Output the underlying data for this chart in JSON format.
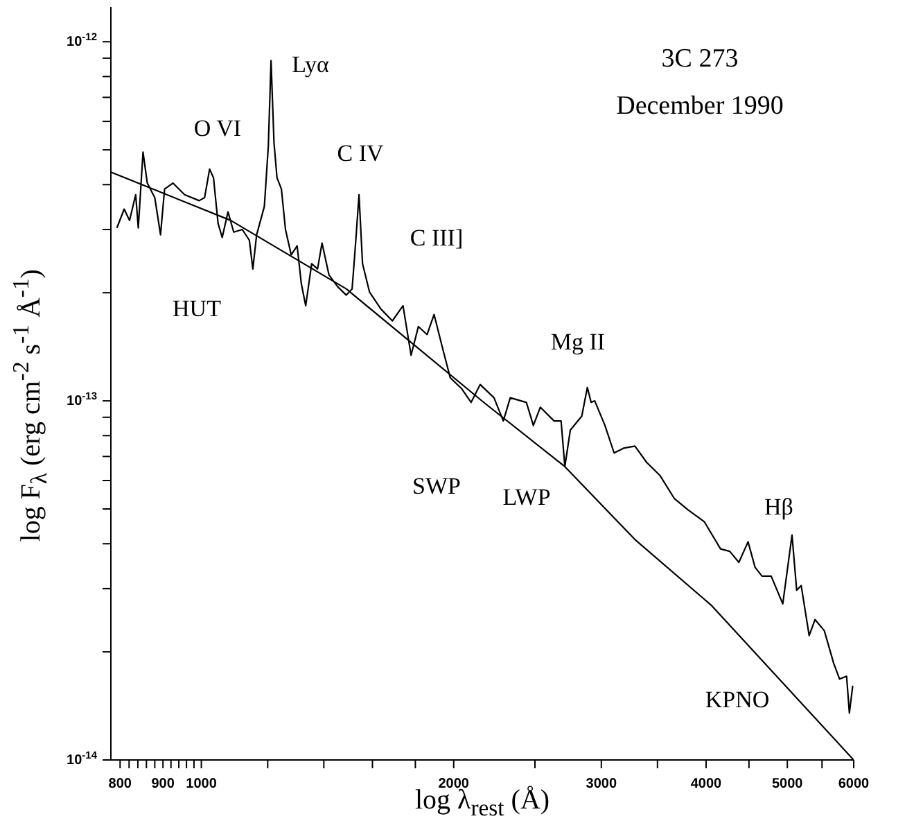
{
  "chart_data": {
    "type": "line",
    "title": "3C 273",
    "subtitle": "December 1990",
    "xlabel": "log λ$_{rest}$ (Å)",
    "ylabel": "log F$_{λ}$ (erg cm$^{-2}$ s$^{-1}$ Å$^{-1}$)",
    "log": "xy",
    "xlim": [
      780,
      6000
    ],
    "ylim": [
      1e-14,
      1.25e-12
    ],
    "xticks": [
      800,
      {
        "value": 820,
        "label": null
      },
      {
        "value": 840,
        "label": null
      },
      {
        "value": 860,
        "label": null
      },
      {
        "value": 880,
        "label": null
      },
      900,
      {
        "value": 920,
        "label": null
      },
      {
        "value": 940,
        "label": null
      },
      {
        "value": 960,
        "label": null
      },
      {
        "value": 980,
        "label": null
      },
      1000,
      {
        "value": 1200,
        "label": null
      },
      {
        "value": 1400,
        "label": null
      },
      {
        "value": 1600,
        "label": null
      },
      {
        "value": 1800,
        "label": null
      },
      2000,
      {
        "value": 2500,
        "label": null
      },
      3000,
      {
        "value": 3500,
        "label": null
      },
      4000,
      {
        "value": 4500,
        "label": null
      },
      5000,
      {
        "value": 5500,
        "label": null
      },
      6000
    ],
    "yticks": [
      {
        "value": 1e-14,
        "label": "10$^{-14}$"
      },
      {
        "value": 2e-14,
        "label": null
      },
      {
        "value": 3e-14,
        "label": null
      },
      {
        "value": 4e-14,
        "label": null
      },
      {
        "value": 5e-14,
        "label": null
      },
      {
        "value": 6e-14,
        "label": null
      },
      {
        "value": 7e-14,
        "label": null
      },
      {
        "value": 8e-14,
        "label": null
      },
      {
        "value": 9e-14,
        "label": null
      },
      {
        "value": 1e-13,
        "label": "10$^{-13}$"
      },
      {
        "value": 2e-13,
        "label": null
      },
      {
        "value": 3e-13,
        "label": null
      },
      {
        "value": 4e-13,
        "label": null
      },
      {
        "value": 5e-13,
        "label": null
      },
      {
        "value": 6e-13,
        "label": null
      },
      {
        "value": 7e-13,
        "label": null
      },
      {
        "value": 8e-13,
        "label": null
      },
      {
        "value": 9e-13,
        "label": null
      },
      {
        "value": 1e-12,
        "label": "10$^{-12}$"
      }
    ],
    "grid": false,
    "legend": false,
    "marker": "none",
    "line_style": "solid",
    "series": [
      {
        "color": "#000000",
        "x": [
          793,
          809,
          821,
          835,
          841,
          852,
          862,
          880,
          894,
          904,
          925,
          955,
          994,
          1009,
          1023,
          1034,
          1047,
          1059,
          1076,
          1093,
          1119,
          1141,
          1152,
          1164,
          1189,
          1202,
          1211,
          1221,
          1231,
          1246,
          1260,
          1280,
          1301,
          1316,
          1332,
          1354,
          1376,
          1393,
          1420,
          1454,
          1489,
          1513,
          1525,
          1542,
          1557,
          1587,
          1638,
          1690,
          1740,
          1779,
          1815,
          1859,
          1895,
          1934,
          1981,
          2045,
          2098,
          2151,
          2234,
          2292,
          2336,
          2442,
          2489,
          2537,
          2635,
          2686,
          2714,
          2755,
          2843,
          2887,
          2917,
          2946,
          3030,
          3107,
          3188,
          3290,
          3396,
          3527,
          3665,
          3807,
          3980,
          4162,
          4268,
          4377,
          4489,
          4576,
          4664,
          4783,
          4938,
          5065,
          5130,
          5194,
          5309,
          5395,
          5535,
          5678,
          5772,
          5884,
          5929,
          5984
        ],
        "values": [
          3.03e-13,
          3.42e-13,
          3.18e-13,
          3.75e-13,
          3.03e-13,
          4.93e-13,
          4.04e-13,
          3.68e-13,
          2.9e-13,
          3.89e-13,
          4.04e-13,
          3.75e-13,
          3.61e-13,
          3.68e-13,
          4.42e-13,
          4.18e-13,
          3.12e-13,
          2.85e-13,
          3.36e-13,
          2.95e-13,
          3e-13,
          2.8e-13,
          2.33e-13,
          2.9e-13,
          3.48e-13,
          5.12e-13,
          8.86e-13,
          5.22e-13,
          4.18e-13,
          3.89e-13,
          3e-13,
          2.55e-13,
          2.7e-13,
          2.12e-13,
          1.84e-13,
          2.41e-13,
          2.33e-13,
          2.75e-13,
          2.24e-13,
          2.08e-13,
          1.97e-13,
          2.05e-13,
          2.6e-13,
          3.75e-13,
          2.41e-13,
          2.01e-13,
          1.8e-13,
          1.67e-13,
          1.84e-13,
          1.34e-13,
          1.61e-13,
          1.53e-13,
          1.74e-13,
          1.44e-13,
          1.16e-13,
          1.08e-13,
          9.9e-14,
          1.11e-13,
          1.02e-13,
          8.79e-14,
          1.02e-13,
          9.9e-14,
          8.54e-14,
          9.6e-14,
          8.79e-14,
          8.79e-14,
          6.56e-14,
          8.29e-14,
          9.06e-14,
          1.09e-13,
          9.9e-14,
          1e-13,
          8.54e-14,
          7.16e-14,
          7.38e-14,
          7.48e-14,
          6.75e-14,
          6.18e-14,
          5.35e-14,
          4.97e-14,
          4.61e-14,
          3.87e-14,
          3.81e-14,
          3.55e-14,
          4.05e-14,
          3.44e-14,
          3.25e-14,
          3.25e-14,
          2.72e-14,
          4.23e-14,
          2.97e-14,
          3.06e-14,
          2.22e-14,
          2.46e-14,
          2.29e-14,
          1.86e-14,
          1.68e-14,
          1.71e-14,
          1.35e-14,
          1.61e-14
        ]
      },
      {
        "color": "#000000",
        "x": [
          781,
          1084,
          1489,
          2178,
          2714,
          3290,
          4055,
          6000
        ],
        "values": [
          4.33e-13,
          3.18e-13,
          2.05e-13,
          9.85e-14,
          6.56e-14,
          4.11e-14,
          2.7e-14,
          1e-14
        ]
      }
    ],
    "annotations": [
      "O VI",
      "Lyα",
      "C IV",
      "C III]",
      "HUT",
      "Mg II",
      "SWP",
      "LWP",
      "Hβ",
      "KPNO"
    ]
  }
}
